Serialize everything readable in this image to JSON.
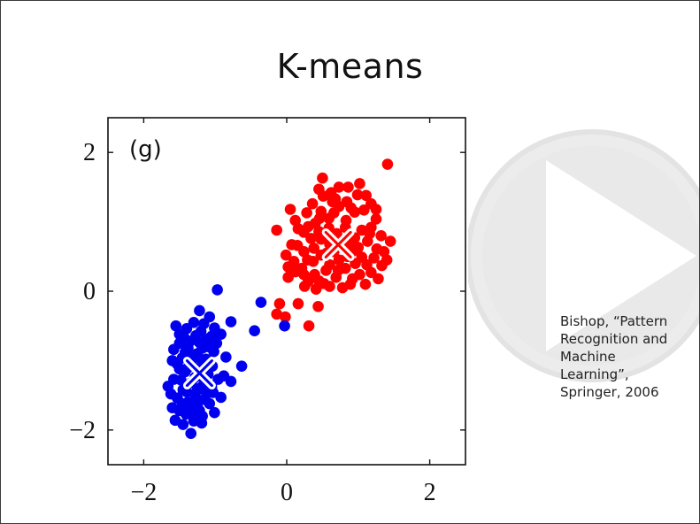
{
  "slide": {
    "title": "K-means",
    "citation_lines": [
      "Bishop, “Pattern",
      "Recognition and",
      "Machine",
      "Learning”,",
      "Springer, 2006"
    ]
  },
  "colors": {
    "cluster_1": "#ff0000",
    "cluster_2": "#0000ee",
    "centroid_stroke": "#ffffff",
    "play_overlay": "#e6e6e6"
  },
  "icons": {
    "play_overlay": "play-icon"
  },
  "chart_data": {
    "type": "scatter",
    "panel_label": "(g)",
    "xlim": [
      -2.5,
      2.5
    ],
    "ylim": [
      -2.5,
      2.5
    ],
    "xticks": [
      -2,
      0,
      2
    ],
    "yticks": [
      -2,
      0,
      2
    ],
    "xtick_labels": [
      "−2",
      "0",
      "2"
    ],
    "ytick_labels": [
      "2",
      "0",
      "−2"
    ],
    "grid": false,
    "series": [
      {
        "color": "#ff0000",
        "points": [
          [
            1.41,
            1.83
          ],
          [
            0.5,
            1.63
          ],
          [
            1.02,
            1.55
          ],
          [
            0.73,
            1.5
          ],
          [
            0.86,
            1.5
          ],
          [
            1.11,
            1.38
          ],
          [
            0.51,
            1.37
          ],
          [
            0.99,
            1.39
          ],
          [
            0.64,
            1.29
          ],
          [
            0.84,
            1.29
          ],
          [
            1.18,
            1.26
          ],
          [
            0.36,
            1.26
          ],
          [
            1.25,
            1.18
          ],
          [
            0.73,
            1.22
          ],
          [
            0.05,
            1.18
          ],
          [
            0.48,
            1.15
          ],
          [
            0.95,
            1.14
          ],
          [
            1.25,
            1.04
          ],
          [
            0.59,
            1.05
          ],
          [
            0.83,
            1.02
          ],
          [
            0.4,
            0.98
          ],
          [
            0.16,
            0.9
          ],
          [
            1.18,
            0.92
          ],
          [
            0.59,
            0.91
          ],
          [
            1.05,
            0.88
          ],
          [
            0.95,
            0.77
          ],
          [
            0.24,
            0.85
          ],
          [
            0.7,
            0.83
          ],
          [
            1.32,
            0.8
          ],
          [
            0.34,
            0.76
          ],
          [
            0.48,
            0.75
          ],
          [
            1.13,
            0.72
          ],
          [
            -0.14,
            0.88
          ],
          [
            0.07,
            0.67
          ],
          [
            1.26,
            0.61
          ],
          [
            0.24,
            0.57
          ],
          [
            0.56,
            0.55
          ],
          [
            0.93,
            0.58
          ],
          [
            1.05,
            0.49
          ],
          [
            1.4,
            0.45
          ],
          [
            0.73,
            0.45
          ],
          [
            0.37,
            0.43
          ],
          [
            -0.01,
            0.52
          ],
          [
            1.12,
            0.38
          ],
          [
            0.21,
            0.33
          ],
          [
            0.82,
            0.33
          ],
          [
            0.55,
            0.3
          ],
          [
            1.02,
            0.24
          ],
          [
            0.39,
            0.24
          ],
          [
            0.69,
            0.2
          ],
          [
            0.02,
            0.2
          ],
          [
            1.28,
            0.18
          ],
          [
            0.52,
            0.11
          ],
          [
            0.25,
            0.07
          ],
          [
            0.89,
            0.1
          ],
          [
            0.41,
            0.03
          ],
          [
            -0.1,
            -0.18
          ],
          [
            0.16,
            -0.18
          ],
          [
            0.44,
            -0.22
          ],
          [
            -0.02,
            -0.37
          ],
          [
            0.31,
            -0.5
          ],
          [
            -0.14,
            -0.33
          ],
          [
            0.45,
            1.47
          ],
          [
            0.28,
            1.13
          ],
          [
            0.62,
            1.42
          ],
          [
            0.12,
            1.02
          ],
          [
            1.08,
            1.17
          ],
          [
            0.66,
            1.13
          ],
          [
            0.9,
            1.2
          ],
          [
            0.46,
            1.05
          ],
          [
            0.3,
            0.93
          ],
          [
            0.82,
            0.92
          ],
          [
            1.16,
            0.83
          ],
          [
            0.45,
            0.86
          ],
          [
            0.6,
            0.68
          ],
          [
            0.15,
            0.66
          ],
          [
            0.88,
            0.68
          ],
          [
            1.0,
            0.63
          ],
          [
            0.38,
            0.62
          ],
          [
            0.1,
            0.43
          ],
          [
            0.66,
            0.57
          ],
          [
            1.22,
            0.48
          ],
          [
            0.29,
            0.45
          ],
          [
            0.85,
            0.5
          ],
          [
            0.48,
            0.52
          ],
          [
            1.33,
            0.37
          ],
          [
            0.6,
            0.38
          ],
          [
            0.96,
            0.4
          ],
          [
            0.12,
            0.28
          ],
          [
            0.72,
            0.3
          ],
          [
            0.45,
            0.15
          ],
          [
            0.92,
            0.18
          ],
          [
            1.18,
            0.27
          ],
          [
            0.6,
            0.07
          ],
          [
            0.3,
            0.14
          ],
          [
            1.1,
            0.1
          ],
          [
            0.78,
            0.05
          ],
          [
            0.24,
            0.24
          ],
          [
            1.36,
            0.57
          ],
          [
            1.45,
            0.72
          ],
          [
            0.02,
            0.35
          ],
          [
            0.68,
            1.33
          ]
        ]
      },
      {
        "color": "#0000ee",
        "points": [
          [
            -0.97,
            0.02
          ],
          [
            -1.22,
            -0.28
          ],
          [
            -0.36,
            -0.16
          ],
          [
            -1.08,
            -0.37
          ],
          [
            -1.16,
            -0.47
          ],
          [
            -0.78,
            -0.44
          ],
          [
            -1.55,
            -0.5
          ],
          [
            -1.4,
            -0.54
          ],
          [
            -1.01,
            -0.53
          ],
          [
            -1.27,
            -0.64
          ],
          [
            -0.45,
            -0.57
          ],
          [
            -1.44,
            -0.66
          ],
          [
            -1.12,
            -0.69
          ],
          [
            -0.98,
            -0.75
          ],
          [
            -1.38,
            -0.82
          ],
          [
            -1.18,
            -0.82
          ],
          [
            -1.58,
            -0.84
          ],
          [
            -1.02,
            -0.87
          ],
          [
            -1.25,
            -0.9
          ],
          [
            -1.46,
            -0.96
          ],
          [
            -1.13,
            -0.98
          ],
          [
            -1.33,
            -1.02
          ],
          [
            -1.53,
            -1.05
          ],
          [
            -1.04,
            -1.08
          ],
          [
            -1.24,
            -1.12
          ],
          [
            -0.63,
            -1.08
          ],
          [
            -1.42,
            -1.16
          ],
          [
            -1.12,
            -1.2
          ],
          [
            -1.58,
            -1.27
          ],
          [
            -0.96,
            -1.27
          ],
          [
            -1.33,
            -1.32
          ],
          [
            -0.78,
            -1.3
          ],
          [
            -1.19,
            -1.38
          ],
          [
            -1.66,
            -1.37
          ],
          [
            -1.45,
            -1.42
          ],
          [
            -1.03,
            -1.46
          ],
          [
            -1.28,
            -1.5
          ],
          [
            -1.53,
            -1.54
          ],
          [
            -1.15,
            -1.56
          ],
          [
            -0.92,
            -1.53
          ],
          [
            -1.38,
            -1.6
          ],
          [
            -1.6,
            -1.68
          ],
          [
            -1.22,
            -1.72
          ],
          [
            -1.41,
            -1.77
          ],
          [
            -1.01,
            -1.75
          ],
          [
            -1.56,
            -1.86
          ],
          [
            -1.3,
            -1.87
          ],
          [
            -1.19,
            -1.9
          ],
          [
            -1.34,
            -2.05
          ],
          [
            -0.03,
            -0.5
          ],
          [
            -1.3,
            -0.45
          ],
          [
            -1.5,
            -0.62
          ],
          [
            -1.2,
            -0.58
          ],
          [
            -1.05,
            -0.65
          ],
          [
            -1.35,
            -0.72
          ],
          [
            -1.5,
            -0.75
          ],
          [
            -1.22,
            -0.74
          ],
          [
            -1.1,
            -0.8
          ],
          [
            -1.42,
            -0.88
          ],
          [
            -1.3,
            -0.95
          ],
          [
            -1.18,
            -1.0
          ],
          [
            -1.5,
            -1.12
          ],
          [
            -1.38,
            -1.1
          ],
          [
            -1.28,
            -1.24
          ],
          [
            -1.48,
            -1.28
          ],
          [
            -1.15,
            -1.32
          ],
          [
            -1.05,
            -1.38
          ],
          [
            -1.4,
            -1.45
          ],
          [
            -1.25,
            -1.42
          ],
          [
            -1.12,
            -1.48
          ],
          [
            -1.46,
            -1.62
          ],
          [
            -1.35,
            -1.68
          ],
          [
            -1.25,
            -1.62
          ],
          [
            -1.08,
            -1.62
          ],
          [
            -1.5,
            -1.72
          ],
          [
            -1.32,
            -1.78
          ],
          [
            -1.18,
            -1.8
          ],
          [
            -0.88,
            -1.22
          ],
          [
            -0.92,
            -0.62
          ],
          [
            -1.6,
            -1.0
          ],
          [
            -1.62,
            -1.48
          ],
          [
            -0.85,
            -0.95
          ],
          [
            -1.45,
            -1.92
          ],
          [
            -1.1,
            -1.2
          ]
        ]
      }
    ],
    "centroids": [
      {
        "x": 0.72,
        "y": 0.67,
        "color": "#ff0000"
      },
      {
        "x": -1.22,
        "y": -1.18,
        "color": "#0000ee"
      }
    ]
  }
}
